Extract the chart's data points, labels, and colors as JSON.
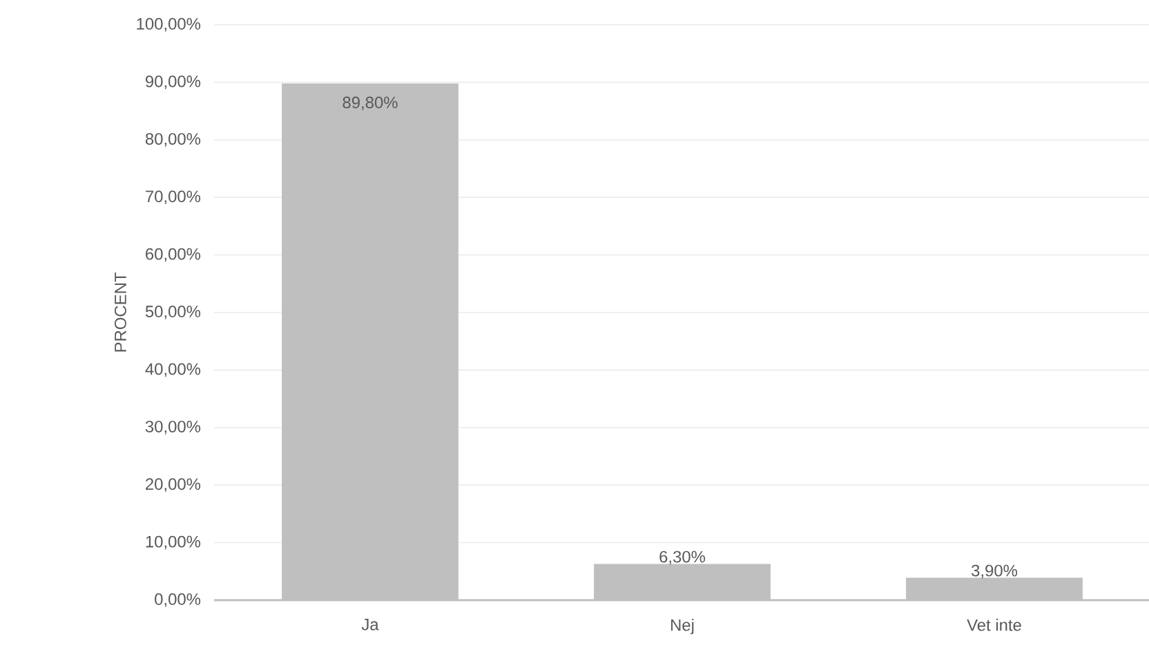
{
  "chart_data": {
    "type": "bar",
    "ylabel": "PROCENT",
    "categories": [
      "Ja",
      "Nej",
      "Vet inte"
    ],
    "values": [
      89.8,
      6.3,
      3.9
    ],
    "value_labels": [
      "89,80%",
      "6,30%",
      "3,90%"
    ],
    "color": "#bfbfbf",
    "ylim": [
      0,
      100
    ],
    "yticks": [
      {
        "value": 0,
        "label": "0,00%"
      },
      {
        "value": 10,
        "label": "10,00%"
      },
      {
        "value": 20,
        "label": "20,00%"
      },
      {
        "value": 30,
        "label": "30,00%"
      },
      {
        "value": 40,
        "label": "40,00%"
      },
      {
        "value": 50,
        "label": "50,00%"
      },
      {
        "value": 60,
        "label": "60,00%"
      },
      {
        "value": 70,
        "label": "70,00%"
      },
      {
        "value": 80,
        "label": "80,00%"
      },
      {
        "value": 90,
        "label": "90,00%"
      },
      {
        "value": 100,
        "label": "100,00%"
      }
    ],
    "grid": "y"
  }
}
